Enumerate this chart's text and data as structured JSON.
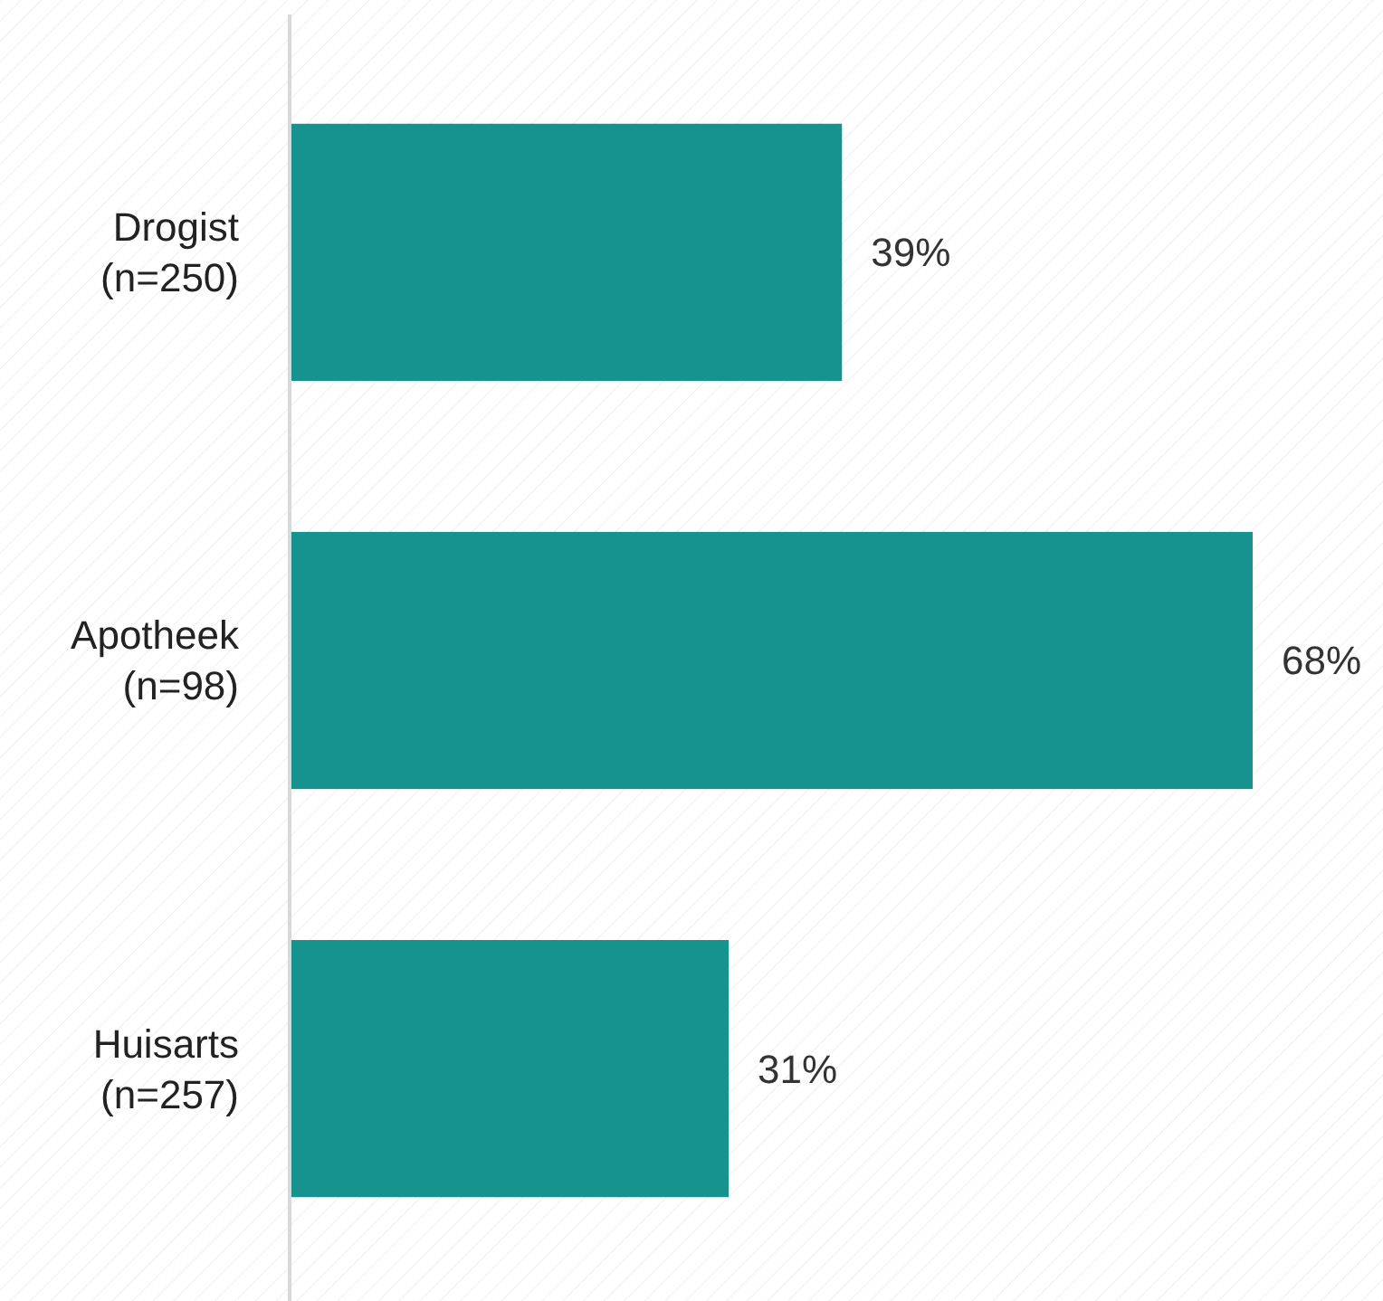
{
  "chart_data": {
    "type": "bar",
    "orientation": "horizontal",
    "categories": [
      "Drogist (n=250)",
      "Apotheek (n=98)",
      "Huisarts (n=257)"
    ],
    "values": [
      39,
      68,
      31
    ],
    "color": "#16928f",
    "value_labels": [
      "39%",
      "68%",
      "31%"
    ]
  }
}
